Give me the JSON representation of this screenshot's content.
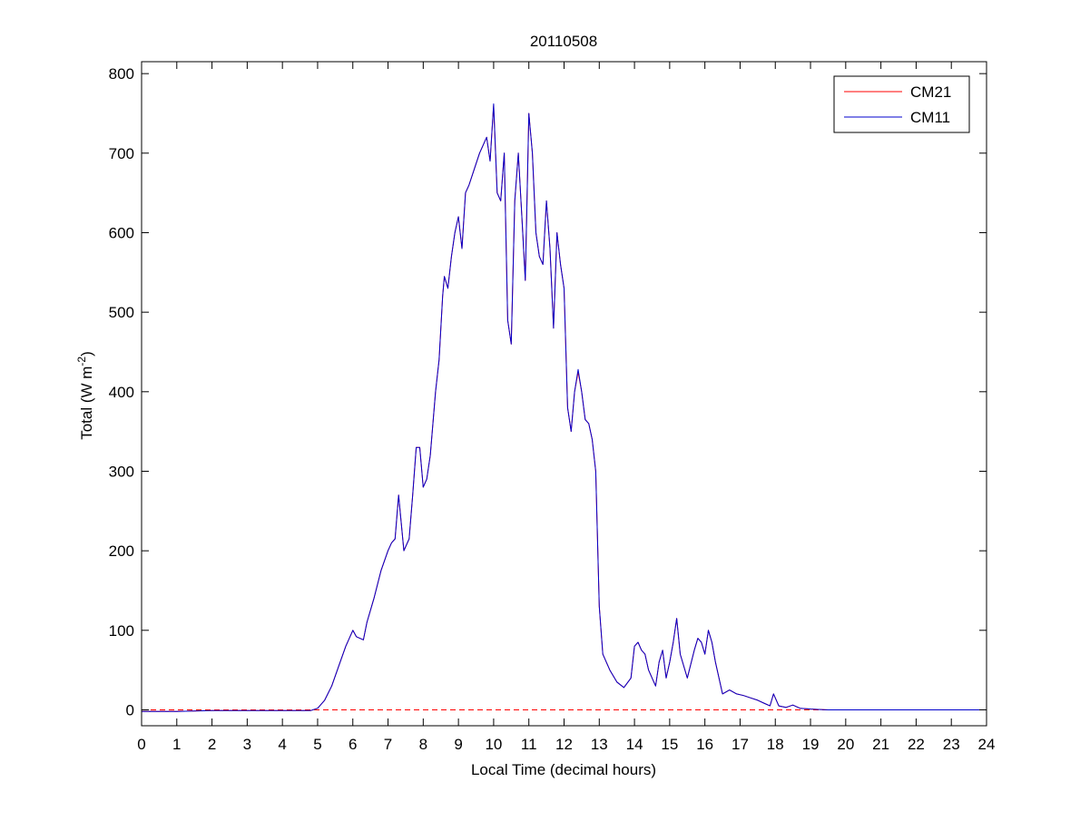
{
  "chart_data": {
    "type": "line",
    "title": "20110508",
    "xlabel": "Local Time (decimal hours)",
    "ylabel": {
      "main": "Total (W m",
      "sup": "-2",
      "close": ")"
    },
    "xlim": [
      0,
      24
    ],
    "ylim": [
      -20,
      815
    ],
    "xticks": [
      0,
      1,
      2,
      3,
      4,
      5,
      6,
      7,
      8,
      9,
      10,
      11,
      12,
      13,
      14,
      15,
      16,
      17,
      18,
      19,
      20,
      21,
      22,
      23,
      24
    ],
    "yticks": [
      0,
      100,
      200,
      300,
      400,
      500,
      600,
      700,
      800
    ],
    "grid": false,
    "legend_position": "top-right",
    "colors": {
      "CM21": "#ff0000",
      "CM11": "#0000cc",
      "zero_line": "#ff0000"
    },
    "reference_line": {
      "y": 0,
      "style": "dashed"
    },
    "series": [
      {
        "name": "CM21",
        "x": [
          0,
          1,
          2,
          3,
          4,
          4.8,
          5.0,
          5.2,
          5.4,
          5.6,
          5.8,
          6.0,
          6.1,
          6.3,
          6.4,
          6.6,
          6.8,
          7.0,
          7.1,
          7.2,
          7.3,
          7.45,
          7.6,
          7.7,
          7.8,
          7.9,
          8.0,
          8.1,
          8.2,
          8.35,
          8.45,
          8.55,
          8.6,
          8.7,
          8.8,
          8.9,
          9.0,
          9.1,
          9.2,
          9.3,
          9.45,
          9.6,
          9.8,
          9.9,
          10.0,
          10.1,
          10.2,
          10.3,
          10.4,
          10.5,
          10.6,
          10.7,
          10.8,
          10.9,
          11.0,
          11.1,
          11.2,
          11.3,
          11.4,
          11.5,
          11.6,
          11.7,
          11.8,
          11.9,
          12.0,
          12.1,
          12.2,
          12.3,
          12.4,
          12.5,
          12.6,
          12.7,
          12.8,
          12.9,
          13.0,
          13.1,
          13.3,
          13.5,
          13.7,
          13.9,
          14.0,
          14.1,
          14.2,
          14.3,
          14.4,
          14.5,
          14.6,
          14.7,
          14.8,
          14.9,
          15.0,
          15.1,
          15.2,
          15.3,
          15.5,
          15.7,
          15.8,
          15.9,
          16.0,
          16.1,
          16.2,
          16.3,
          16.5,
          16.7,
          16.9,
          17.1,
          17.3,
          17.5,
          17.7,
          17.85,
          17.95,
          18.1,
          18.3,
          18.5,
          18.7,
          19.0,
          19.5,
          20,
          21,
          22,
          23,
          24
        ],
        "y": [
          -2,
          -2,
          -1,
          -1,
          -1,
          -1,
          2,
          12,
          30,
          55,
          80,
          100,
          92,
          88,
          110,
          140,
          175,
          200,
          210,
          215,
          270,
          200,
          215,
          270,
          330,
          330,
          280,
          290,
          320,
          400,
          440,
          520,
          545,
          530,
          570,
          600,
          620,
          580,
          650,
          660,
          680,
          700,
          720,
          690,
          760,
          650,
          640,
          700,
          490,
          460,
          640,
          700,
          620,
          540,
          750,
          700,
          600,
          570,
          560,
          640,
          580,
          480,
          600,
          560,
          530,
          380,
          350,
          400,
          425,
          400,
          365,
          360,
          340,
          300,
          130,
          70,
          50,
          35,
          28,
          40,
          80,
          85,
          75,
          70,
          50,
          40,
          30,
          60,
          75,
          40,
          60,
          85,
          115,
          70,
          40,
          75,
          90,
          85,
          70,
          100,
          85,
          60,
          20,
          25,
          20,
          18,
          15,
          12,
          8,
          5,
          20,
          5,
          3,
          6,
          2,
          1,
          0,
          0,
          0,
          0,
          0,
          0
        ],
        "color": "#ff0000"
      },
      {
        "name": "CM11",
        "x": [
          0,
          1,
          2,
          3,
          4,
          4.8,
          5.0,
          5.2,
          5.4,
          5.6,
          5.8,
          6.0,
          6.1,
          6.3,
          6.4,
          6.6,
          6.8,
          7.0,
          7.1,
          7.2,
          7.3,
          7.45,
          7.6,
          7.7,
          7.8,
          7.9,
          8.0,
          8.1,
          8.2,
          8.35,
          8.45,
          8.55,
          8.6,
          8.7,
          8.8,
          8.9,
          9.0,
          9.1,
          9.2,
          9.3,
          9.45,
          9.6,
          9.8,
          9.9,
          10.0,
          10.1,
          10.2,
          10.3,
          10.4,
          10.5,
          10.6,
          10.7,
          10.8,
          10.9,
          11.0,
          11.1,
          11.2,
          11.3,
          11.4,
          11.5,
          11.6,
          11.7,
          11.8,
          11.9,
          12.0,
          12.1,
          12.2,
          12.3,
          12.4,
          12.5,
          12.6,
          12.7,
          12.8,
          12.9,
          13.0,
          13.1,
          13.3,
          13.5,
          13.7,
          13.9,
          14.0,
          14.1,
          14.2,
          14.3,
          14.4,
          14.5,
          14.6,
          14.7,
          14.8,
          14.9,
          15.0,
          15.1,
          15.2,
          15.3,
          15.5,
          15.7,
          15.8,
          15.9,
          16.0,
          16.1,
          16.2,
          16.3,
          16.5,
          16.7,
          16.9,
          17.1,
          17.3,
          17.5,
          17.7,
          17.85,
          17.95,
          18.1,
          18.3,
          18.5,
          18.7,
          19.0,
          19.5,
          20,
          21,
          22,
          23,
          24
        ],
        "y": [
          -2,
          -2,
          -1,
          -1,
          -1,
          -1,
          2,
          12,
          30,
          55,
          80,
          100,
          92,
          88,
          110,
          140,
          175,
          200,
          210,
          215,
          270,
          200,
          215,
          270,
          330,
          330,
          280,
          290,
          320,
          400,
          440,
          520,
          545,
          530,
          570,
          600,
          620,
          580,
          650,
          660,
          680,
          700,
          720,
          690,
          762,
          650,
          640,
          700,
          490,
          460,
          640,
          700,
          620,
          540,
          750,
          700,
          600,
          570,
          560,
          640,
          580,
          480,
          600,
          560,
          530,
          380,
          350,
          400,
          428,
          400,
          365,
          360,
          340,
          300,
          130,
          70,
          50,
          35,
          28,
          40,
          80,
          85,
          75,
          70,
          50,
          40,
          30,
          60,
          75,
          40,
          60,
          85,
          115,
          70,
          40,
          75,
          90,
          85,
          70,
          100,
          85,
          60,
          20,
          25,
          20,
          18,
          15,
          12,
          8,
          5,
          20,
          5,
          3,
          6,
          2,
          1,
          0,
          0,
          0,
          0,
          0,
          0
        ],
        "color": "#0000cc"
      }
    ]
  }
}
